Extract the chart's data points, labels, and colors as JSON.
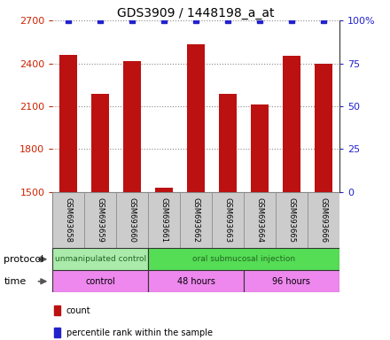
{
  "title": "GDS3909 / 1448198_a_at",
  "samples": [
    "GSM693658",
    "GSM693659",
    "GSM693660",
    "GSM693661",
    "GSM693662",
    "GSM693663",
    "GSM693664",
    "GSM693665",
    "GSM693666"
  ],
  "bar_values": [
    2460,
    2185,
    2415,
    1530,
    2535,
    2185,
    2110,
    2450,
    2395
  ],
  "percentile_values": [
    100,
    100,
    100,
    100,
    100,
    100,
    100,
    100,
    100
  ],
  "ylim_left": [
    1500,
    2700
  ],
  "ylim_right": [
    0,
    100
  ],
  "yticks_left": [
    1500,
    1800,
    2100,
    2400,
    2700
  ],
  "yticks_right": [
    0,
    25,
    50,
    75,
    100
  ],
  "bar_color": "#bb1111",
  "percentile_color": "#2222cc",
  "protocol_groups": [
    {
      "label": "unmanipulated control",
      "start": 0,
      "end": 3,
      "color": "#aaeaaa"
    },
    {
      "label": "oral submucosal injection",
      "start": 3,
      "end": 9,
      "color": "#55dd55"
    }
  ],
  "time_groups": [
    {
      "label": "control",
      "start": 0,
      "end": 3,
      "color": "#ee88ee"
    },
    {
      "label": "48 hours",
      "start": 3,
      "end": 6,
      "color": "#ee88ee"
    },
    {
      "label": "96 hours",
      "start": 6,
      "end": 9,
      "color": "#ee88ee"
    }
  ],
  "legend_items": [
    {
      "color": "#bb1111",
      "label": "count"
    },
    {
      "color": "#2222cc",
      "label": "percentile rank within the sample"
    }
  ],
  "bg_color": "#ffffff",
  "axis_left_color": "#cc2200",
  "axis_right_color": "#2222cc",
  "label_row_bg": "#cccccc",
  "protocol_label": "protocol",
  "time_label": "time",
  "title_fontsize": 10,
  "grid_color": "#888888",
  "spine_color": "#333333"
}
